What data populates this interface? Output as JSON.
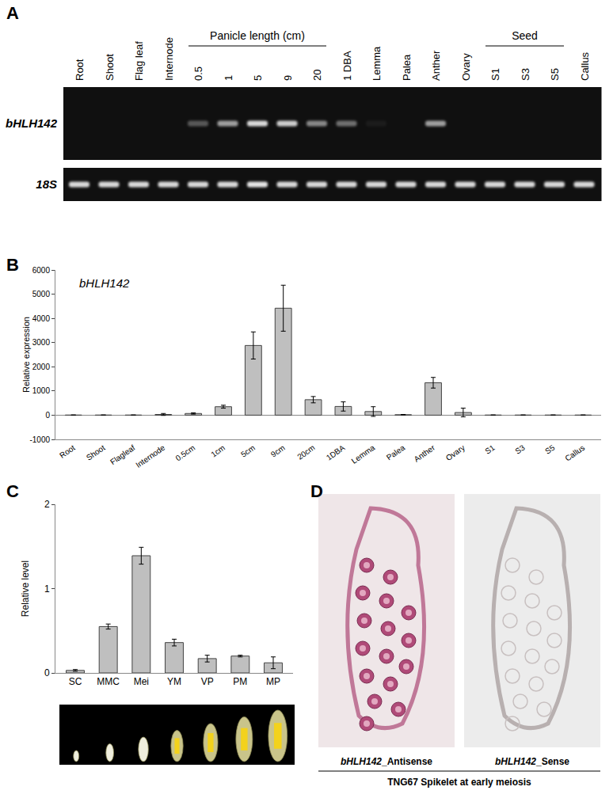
{
  "panel_labels": [
    "A",
    "B",
    "C",
    "D"
  ],
  "gel": {
    "lanes": [
      "Root",
      "Shoot",
      "Flag leaf",
      "Internode",
      "0.5",
      "1",
      "5",
      "9",
      "20",
      "1 DBA",
      "Lemma",
      "Palea",
      "Anther",
      "Ovary",
      "S1",
      "S3",
      "S5",
      "Callus"
    ],
    "groups": [
      {
        "label": "Panicle length (cm)",
        "from": 4,
        "to": 8
      },
      {
        "label": "Seed",
        "from": 14,
        "to": 16
      }
    ],
    "rows": [
      {
        "name": "bHLH142",
        "intensity": [
          0,
          0,
          0,
          0,
          0.3,
          0.6,
          0.85,
          0.8,
          0.5,
          0.4,
          0.05,
          0,
          0.6,
          0,
          0,
          0,
          0,
          0
        ]
      },
      {
        "name": "18S",
        "intensity": [
          0.85,
          0.85,
          0.85,
          0.85,
          0.85,
          0.85,
          0.9,
          0.85,
          0.85,
          0.85,
          0.85,
          0.85,
          0.85,
          0.85,
          0.85,
          0.85,
          0.85,
          0.85
        ]
      }
    ]
  },
  "chart_data": [
    {
      "type": "bar",
      "title": "bHLH142",
      "y_label": "Relative expression",
      "categories": [
        "Root",
        "Shoot",
        "Flagleaf",
        "Internode",
        "0.5cm",
        "1cm",
        "5cm",
        "9cm",
        "20cm",
        "1DBA",
        "Lemma",
        "Palea",
        "Anther",
        "Ovary",
        "S1",
        "S3",
        "S5",
        "Callus"
      ],
      "values": [
        5,
        5,
        5,
        30,
        70,
        350,
        2880,
        4420,
        640,
        360,
        150,
        20,
        1340,
        110,
        5,
        5,
        5,
        5
      ],
      "errors": [
        5,
        5,
        5,
        40,
        25,
        60,
        560,
        950,
        130,
        190,
        200,
        10,
        220,
        180,
        5,
        5,
        5,
        5
      ],
      "color": "#bfbfbf",
      "ylim": [
        -1000,
        6000
      ],
      "yticks": [
        -1000,
        0,
        1000,
        2000,
        3000,
        4000,
        5000,
        6000
      ],
      "grid": false
    },
    {
      "type": "bar",
      "y_label": "Relative level",
      "categories": [
        "SC",
        "MMC",
        "Mei",
        "YM",
        "VP",
        "PM",
        "MP"
      ],
      "values": [
        0.03,
        0.55,
        1.39,
        0.36,
        0.17,
        0.2,
        0.12
      ],
      "errors": [
        0.01,
        0.03,
        0.1,
        0.04,
        0.04,
        0.01,
        0.07
      ],
      "color": "#bfbfbf",
      "ylim": [
        0,
        2
      ],
      "yticks": [
        0,
        1,
        2
      ],
      "grid": false
    }
  ],
  "in_situ": {
    "images": [
      {
        "label": "bHLH142_Antisense",
        "stain": true
      },
      {
        "label": "bHLH142_Sense",
        "stain": false
      }
    ],
    "caption": "TNG67 Spikelet at early meiosis"
  }
}
